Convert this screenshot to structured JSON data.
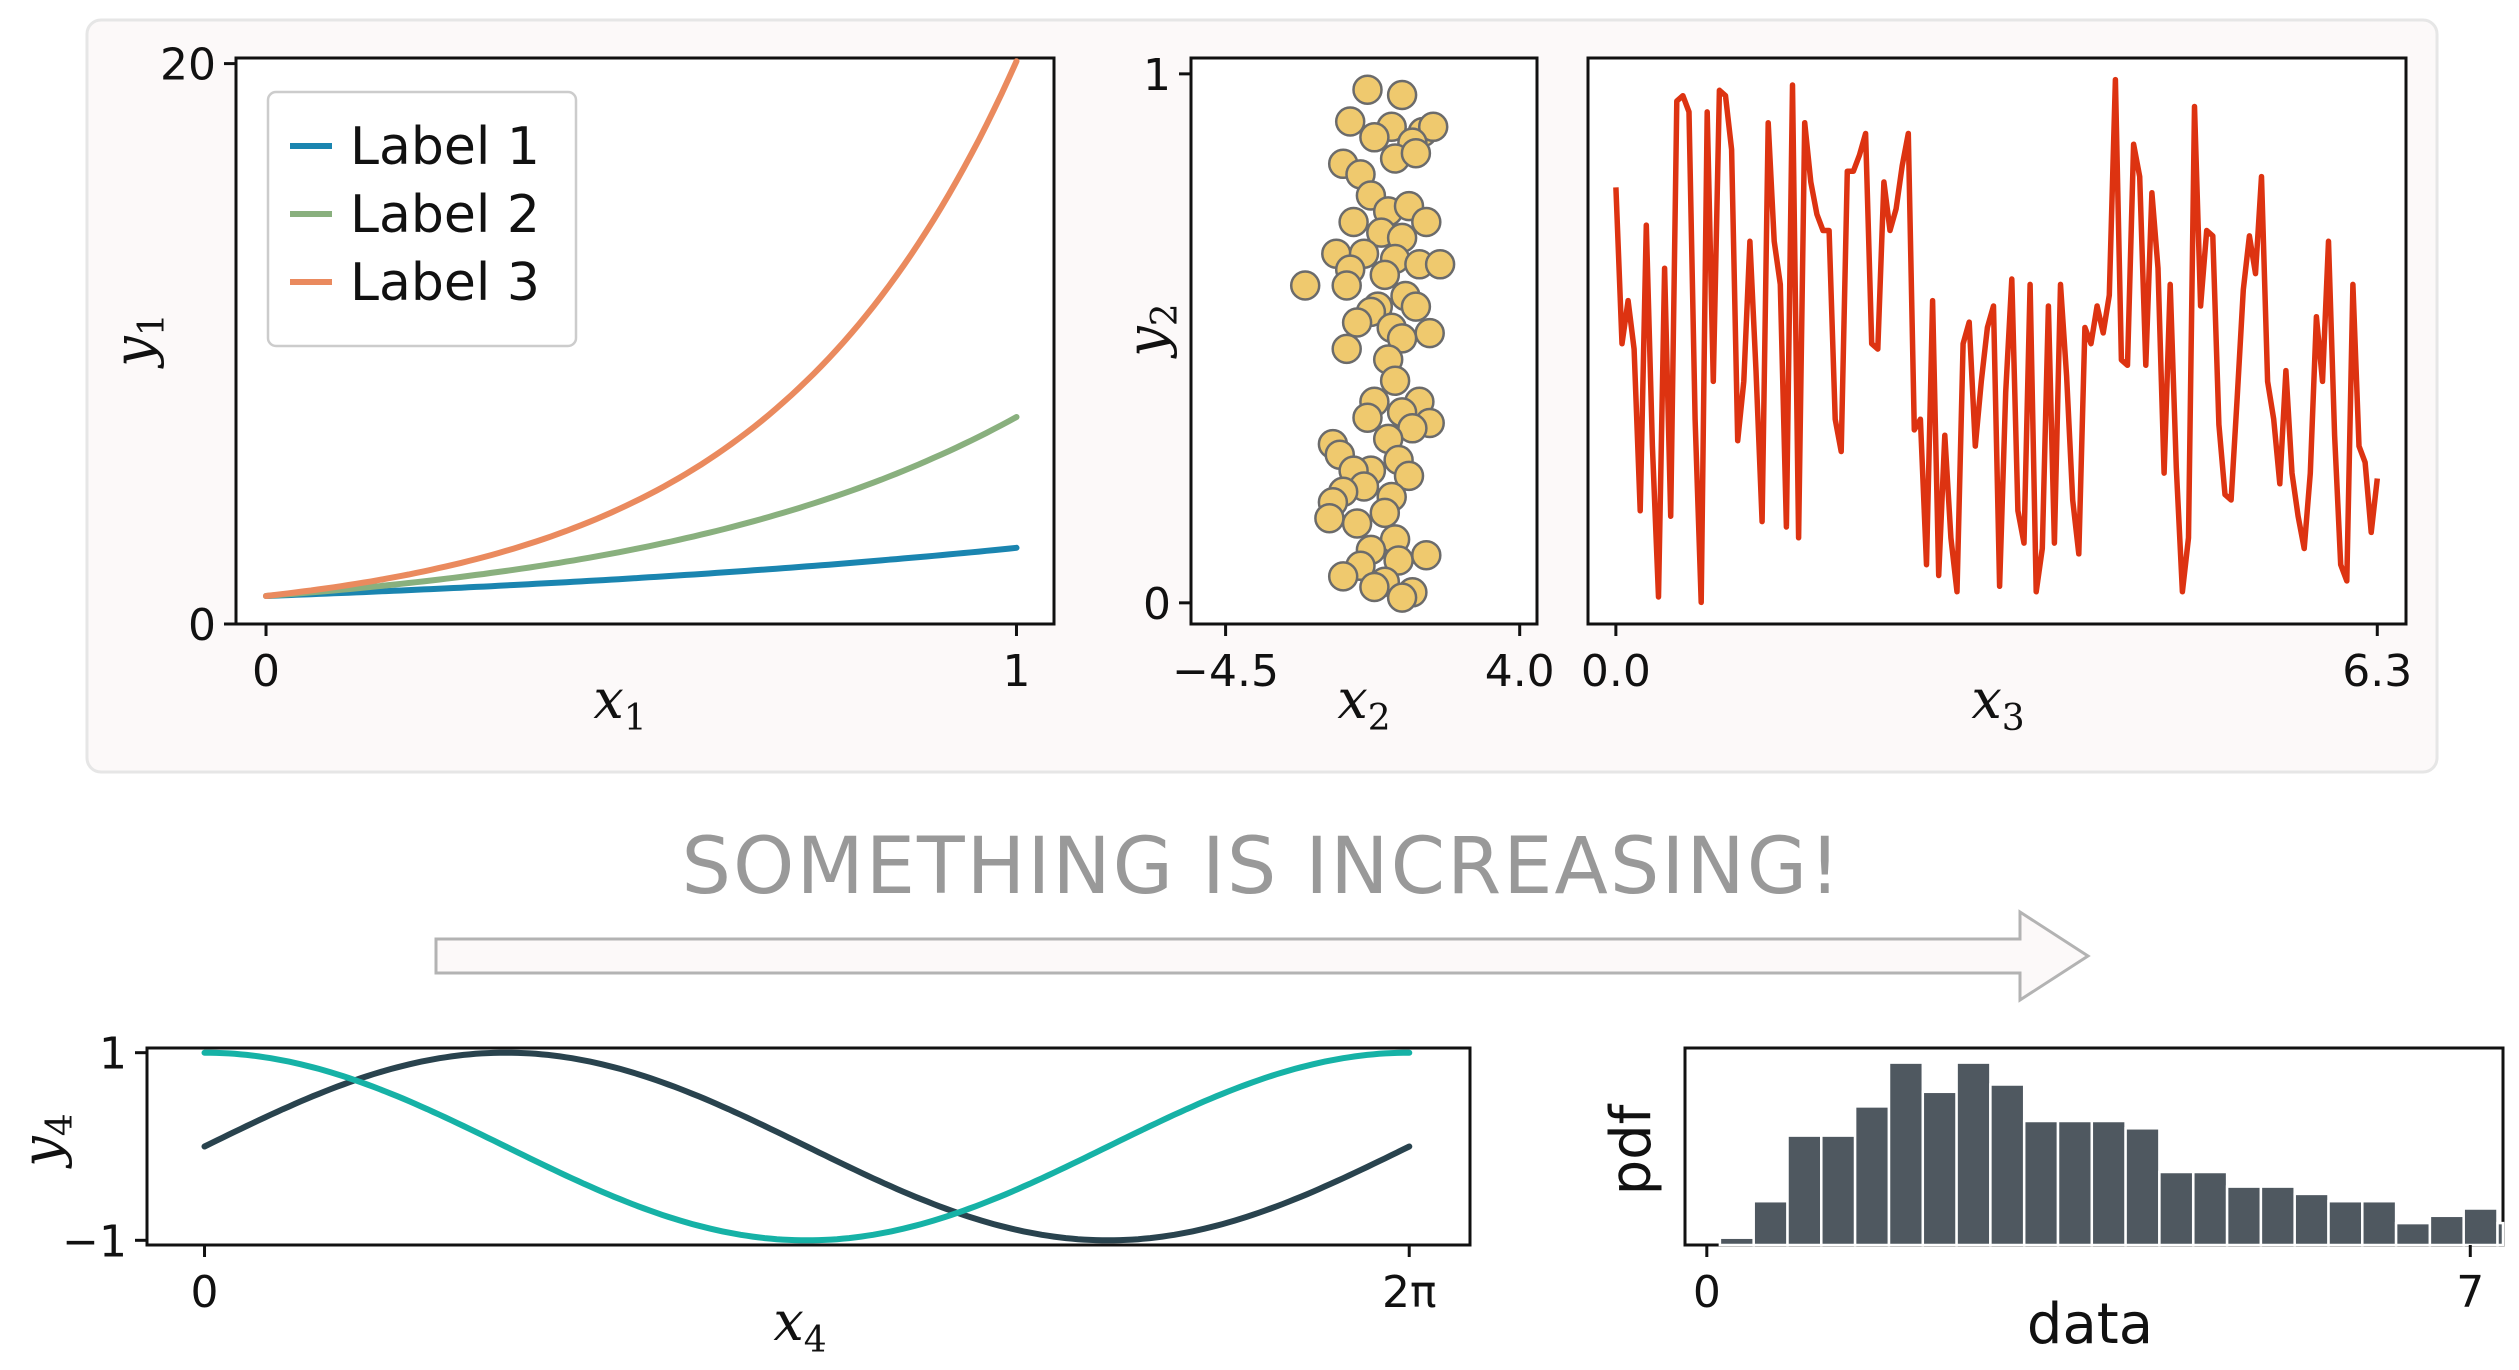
{
  "banner": {
    "text": "SOMETHING IS INCREASING!",
    "color": "#999999",
    "arrow_fill": "#fcf9f9",
    "arrow_stroke": "#b3b3b3"
  },
  "panel_background": "#fcf9f9",
  "chart_data": [
    {
      "id": "exp",
      "type": "line",
      "xlabel": "x",
      "xlabel_sub": "1",
      "ylabel": "y",
      "ylabel_sub": "1",
      "xlim": [
        -0.04,
        1.05
      ],
      "ylim": [
        0,
        20.2
      ],
      "xticks": [
        {
          "v": 0,
          "label": "0"
        },
        {
          "v": 1,
          "label": "1"
        }
      ],
      "yticks": [
        {
          "v": 0,
          "label": "0"
        },
        {
          "v": 20,
          "label": "20"
        }
      ],
      "legend_position": "top-left",
      "series": [
        {
          "name": "Label 1",
          "color": "#1a85b0",
          "base": 2.718
        },
        {
          "name": "Label 2",
          "color": "#89b07e",
          "base": 7.389
        },
        {
          "name": "Label 3",
          "color": "#ea8a5e",
          "base": 20.086
        }
      ]
    },
    {
      "id": "scatter",
      "type": "scatter",
      "xlabel": "x",
      "xlabel_sub": "2",
      "ylabel": "y",
      "ylabel_sub": "2",
      "xlim": [
        -5.5,
        4.5
      ],
      "ylim": [
        -0.04,
        1.03
      ],
      "xticks": [
        {
          "v": -4.5,
          "label": "−4.5"
        },
        {
          "v": 4.0,
          "label": "4.0"
        }
      ],
      "yticks": [
        {
          "v": 0,
          "label": "0"
        },
        {
          "v": 1,
          "label": "1"
        }
      ],
      "marker_fill": "#efc96e",
      "marker_edge": "#6b6b6b",
      "points": [
        [
          -0.4,
          0.97
        ],
        [
          0.6,
          0.96
        ],
        [
          1.2,
          0.89
        ],
        [
          -0.9,
          0.91
        ],
        [
          0.3,
          0.9
        ],
        [
          -0.2,
          0.88
        ],
        [
          1.5,
          0.9
        ],
        [
          0.9,
          0.87
        ],
        [
          -1.1,
          0.83
        ],
        [
          0.4,
          0.84
        ],
        [
          -0.6,
          0.81
        ],
        [
          1.0,
          0.85
        ],
        [
          -0.3,
          0.77
        ],
        [
          0.2,
          0.74
        ],
        [
          0.8,
          0.75
        ],
        [
          -0.8,
          0.72
        ],
        [
          1.3,
          0.72
        ],
        [
          0.0,
          0.7
        ],
        [
          0.6,
          0.69
        ],
        [
          -1.3,
          0.66
        ],
        [
          -0.5,
          0.66
        ],
        [
          0.4,
          0.65
        ],
        [
          1.1,
          0.64
        ],
        [
          -0.9,
          0.63
        ],
        [
          0.1,
          0.62
        ],
        [
          1.7,
          0.64
        ],
        [
          -2.2,
          0.6
        ],
        [
          -1.0,
          0.6
        ],
        [
          0.7,
          0.58
        ],
        [
          -0.1,
          0.56
        ],
        [
          -0.3,
          0.55
        ],
        [
          1.0,
          0.56
        ],
        [
          -0.7,
          0.53
        ],
        [
          0.3,
          0.52
        ],
        [
          1.4,
          0.51
        ],
        [
          -1.0,
          0.48
        ],
        [
          0.6,
          0.5
        ],
        [
          0.2,
          0.46
        ],
        [
          0.4,
          0.42
        ],
        [
          -0.2,
          0.38
        ],
        [
          1.1,
          0.38
        ],
        [
          0.6,
          0.36
        ],
        [
          -0.4,
          0.35
        ],
        [
          1.4,
          0.34
        ],
        [
          0.9,
          0.33
        ],
        [
          -1.4,
          0.3
        ],
        [
          0.2,
          0.31
        ],
        [
          -1.2,
          0.28
        ],
        [
          0.5,
          0.27
        ],
        [
          -0.3,
          0.25
        ],
        [
          -0.8,
          0.25
        ],
        [
          0.8,
          0.24
        ],
        [
          -0.5,
          0.22
        ],
        [
          -1.1,
          0.21
        ],
        [
          0.3,
          0.2
        ],
        [
          -1.4,
          0.19
        ],
        [
          0.1,
          0.17
        ],
        [
          -0.7,
          0.15
        ],
        [
          -1.5,
          0.16
        ],
        [
          0.4,
          0.12
        ],
        [
          -0.3,
          0.1
        ],
        [
          0.5,
          0.08
        ],
        [
          1.3,
          0.09
        ],
        [
          -0.6,
          0.07
        ],
        [
          -1.1,
          0.05
        ],
        [
          0.1,
          0.04
        ],
        [
          0.9,
          0.02
        ],
        [
          -0.2,
          0.03
        ],
        [
          0.6,
          0.01
        ]
      ]
    },
    {
      "id": "noise",
      "type": "line",
      "xlabel": "x",
      "xlabel_sub": "3",
      "xlim": [
        -0.23,
        6.52
      ],
      "ylim": [
        -0.03,
        1.02
      ],
      "xticks": [
        {
          "v": 0,
          "label": "0.0"
        },
        {
          "v": 6.283,
          "label": "6.3"
        }
      ],
      "color": "#dd3311",
      "x_max": 6.283,
      "values": [
        0.78,
        0.49,
        0.57,
        0.48,
        0.18,
        0.71,
        0.3,
        0.02,
        0.63,
        0.17,
        0.94,
        0.95,
        0.92,
        0.35,
        0.01,
        0.92,
        0.42,
        0.96,
        0.95,
        0.85,
        0.31,
        0.42,
        0.68,
        0.44,
        0.16,
        0.9,
        0.68,
        0.6,
        0.15,
        0.97,
        0.13,
        0.9,
        0.79,
        0.73,
        0.7,
        0.7,
        0.35,
        0.29,
        0.81,
        0.81,
        0.84,
        0.88,
        0.49,
        0.48,
        0.79,
        0.7,
        0.74,
        0.82,
        0.88,
        0.33,
        0.35,
        0.08,
        0.57,
        0.06,
        0.32,
        0.13,
        0.03,
        0.49,
        0.53,
        0.3,
        0.42,
        0.52,
        0.56,
        0.04,
        0.4,
        0.61,
        0.18,
        0.12,
        0.6,
        0.03,
        0.11,
        0.56,
        0.12,
        0.6,
        0.43,
        0.2,
        0.1,
        0.52,
        0.49,
        0.56,
        0.51,
        0.58,
        0.98,
        0.46,
        0.45,
        0.86,
        0.8,
        0.45,
        0.77,
        0.63,
        0.25,
        0.6,
        0.26,
        0.03,
        0.13,
        0.93,
        0.56,
        0.7,
        0.69,
        0.34,
        0.21,
        0.2,
        0.39,
        0.59,
        0.69,
        0.62,
        0.8,
        0.42,
        0.35,
        0.23,
        0.44,
        0.25,
        0.17,
        0.11,
        0.25,
        0.54,
        0.42,
        0.68,
        0.32,
        0.08,
        0.05,
        0.6,
        0.3,
        0.27,
        0.14,
        0.24
      ]
    },
    {
      "id": "trig",
      "type": "line",
      "xlabel": "x",
      "xlabel_sub": "4",
      "ylabel": "y",
      "ylabel_sub": "4",
      "xlim": [
        -0.3,
        6.6
      ],
      "ylim": [
        -1.05,
        1.05
      ],
      "xticks": [
        {
          "v": 0,
          "label": "0"
        },
        {
          "v": 6.283,
          "label": "2π"
        }
      ],
      "yticks": [
        {
          "v": -1,
          "label": "−1"
        },
        {
          "v": 1,
          "label": "1"
        }
      ],
      "series": [
        {
          "fn": "sin",
          "color": "#29434e"
        },
        {
          "fn": "cos",
          "color": "#16b2a6"
        }
      ]
    },
    {
      "id": "hist",
      "type": "bar",
      "xlabel": "data",
      "ylabel": "pdf",
      "xlim": [
        -0.2,
        7.3
      ],
      "ylim": [
        0,
        0.27
      ],
      "xticks": [
        {
          "v": 0,
          "label": "0"
        },
        {
          "v": 7,
          "label": "7"
        }
      ],
      "bar_color": "#4f5860",
      "bin_start": 0.12,
      "bin_width": 0.31,
      "values": [
        0.01,
        0.06,
        0.15,
        0.15,
        0.19,
        0.25,
        0.21,
        0.25,
        0.22,
        0.17,
        0.17,
        0.17,
        0.16,
        0.1,
        0.1,
        0.08,
        0.08,
        0.07,
        0.06,
        0.06,
        0.03,
        0.04,
        0.05,
        0.03,
        0.02
      ]
    }
  ]
}
